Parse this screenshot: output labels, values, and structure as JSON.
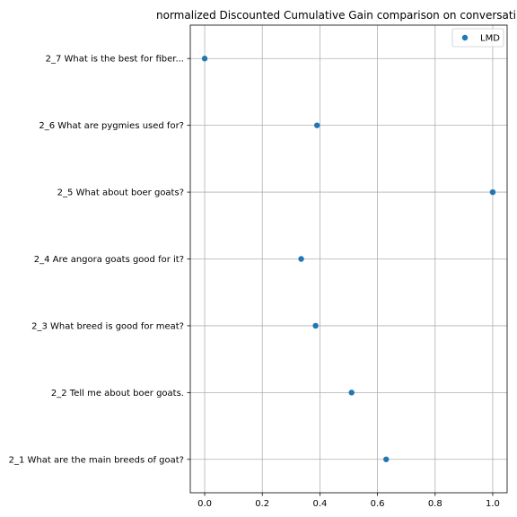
{
  "chart_data": {
    "type": "scatter",
    "title": "normalized Discounted Cumulative Gain comparison on conversati",
    "xlabel": "",
    "ylabel": "",
    "xlim": [
      -0.05,
      1.05
    ],
    "xticks": [
      0.0,
      0.2,
      0.4,
      0.6,
      0.8,
      1.0
    ],
    "xtick_labels": [
      "0.0",
      "0.2",
      "0.4",
      "0.6",
      "0.8",
      "1.0"
    ],
    "categories": [
      "2_1 What are the main breeds of goat?",
      "2_2 Tell me about boer goats.",
      "2_3 What breed is good for meat?",
      "2_4 Are angora goats good for it?",
      "2_5 What about boer goats?",
      "2_6 What are pygmies used for?",
      "2_7 What is the best for fiber..."
    ],
    "grid": true,
    "legend_position": "top-right",
    "series": [
      {
        "name": "LMD",
        "color": "#1f77b4",
        "values": [
          0.63,
          0.51,
          0.385,
          0.335,
          1.0,
          0.39,
          0.0
        ]
      }
    ]
  }
}
